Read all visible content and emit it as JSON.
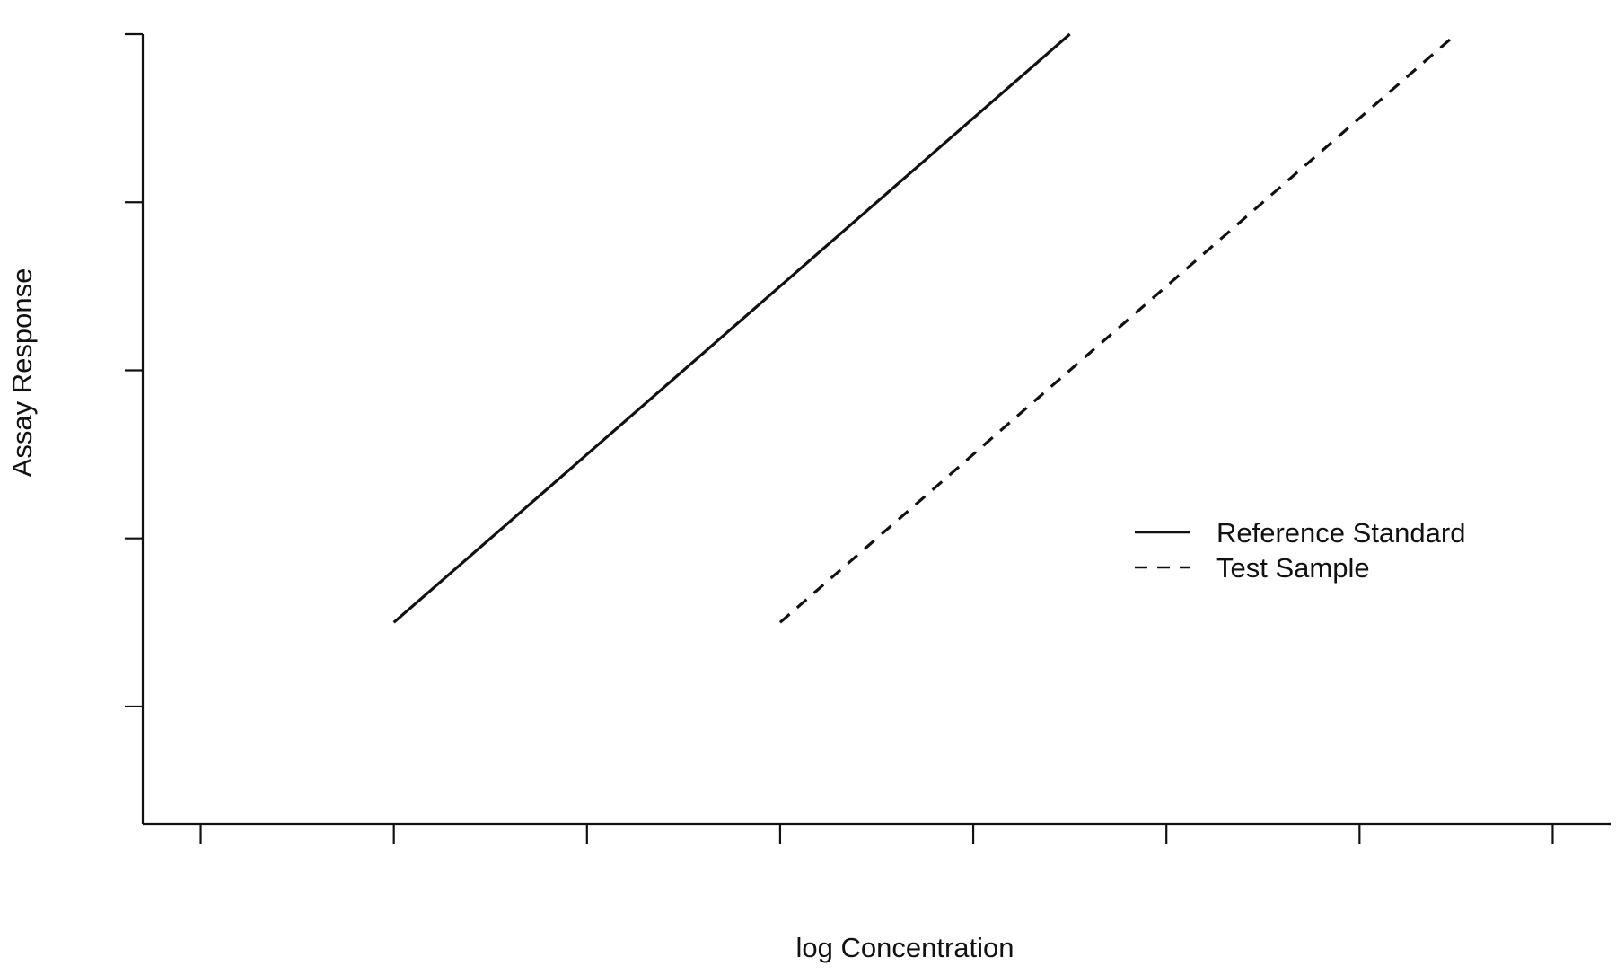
{
  "chart_data": {
    "type": "line",
    "title": "",
    "xlabel": "log Concentration",
    "ylabel": "Assay Response",
    "xlim": [
      -0.3,
      7.3
    ],
    "ylim": [
      -0.7,
      4.0
    ],
    "x_ticks": [
      0,
      1,
      2,
      3,
      4,
      5,
      6,
      7
    ],
    "y_ticks": [
      0,
      1,
      2,
      3,
      4
    ],
    "x_tick_labels_shown": false,
    "y_tick_labels_shown": false,
    "grid": false,
    "legend_position": "right",
    "series": [
      {
        "name": "Reference Standard",
        "style": "solid",
        "color": "#111111",
        "x": [
          1.0,
          4.5
        ],
        "y": [
          0.5,
          4.0
        ]
      },
      {
        "name": "Test Sample",
        "style": "dashed",
        "color": "#111111",
        "x": [
          3.0,
          6.5
        ],
        "y": [
          0.5,
          4.0
        ]
      }
    ]
  }
}
